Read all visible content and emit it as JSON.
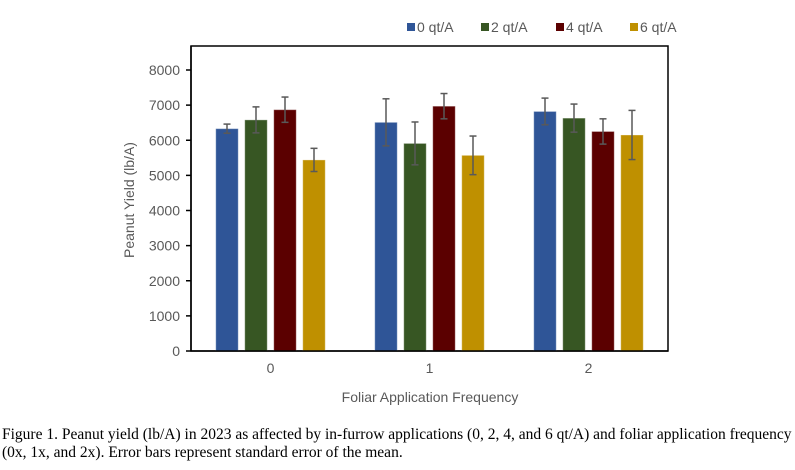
{
  "chart_data": {
    "type": "bar",
    "title": "",
    "xlabel": "Foliar Application Frequency",
    "ylabel": "Peanut Yield (lb/A)",
    "ylim": [
      0,
      8000
    ],
    "yticks": [
      0,
      1000,
      2000,
      3000,
      4000,
      5000,
      6000,
      7000,
      8000
    ],
    "categories": [
      "0",
      "1",
      "2"
    ],
    "grid": false,
    "legend_position": "top-right",
    "series": [
      {
        "name": "0 qt/A",
        "color": "#2F5597",
        "values": [
          6330,
          6510,
          6820
        ],
        "errors": [
          130,
          670,
          380
        ]
      },
      {
        "name": "2 qt/A",
        "color": "#375623",
        "values": [
          6580,
          5910,
          6630
        ],
        "errors": [
          370,
          610,
          400
        ]
      },
      {
        "name": "4 qt/A",
        "color": "#5B0000",
        "values": [
          6870,
          6970,
          6250
        ],
        "errors": [
          360,
          360,
          360
        ]
      },
      {
        "name": "6 qt/A",
        "color": "#BF9000",
        "values": [
          5440,
          5570,
          6150
        ],
        "errors": [
          330,
          550,
          700
        ]
      }
    ],
    "error_bar_note": "standard error of the mean"
  },
  "caption": {
    "text": "Figure 1. Peanut yield (lb/A) in 2023 as affected by in-furrow applications (0, 2, 4, and 6 qt/A) and foliar application frequency (0x, 1x, and 2x). Error bars represent standard error of the mean."
  }
}
